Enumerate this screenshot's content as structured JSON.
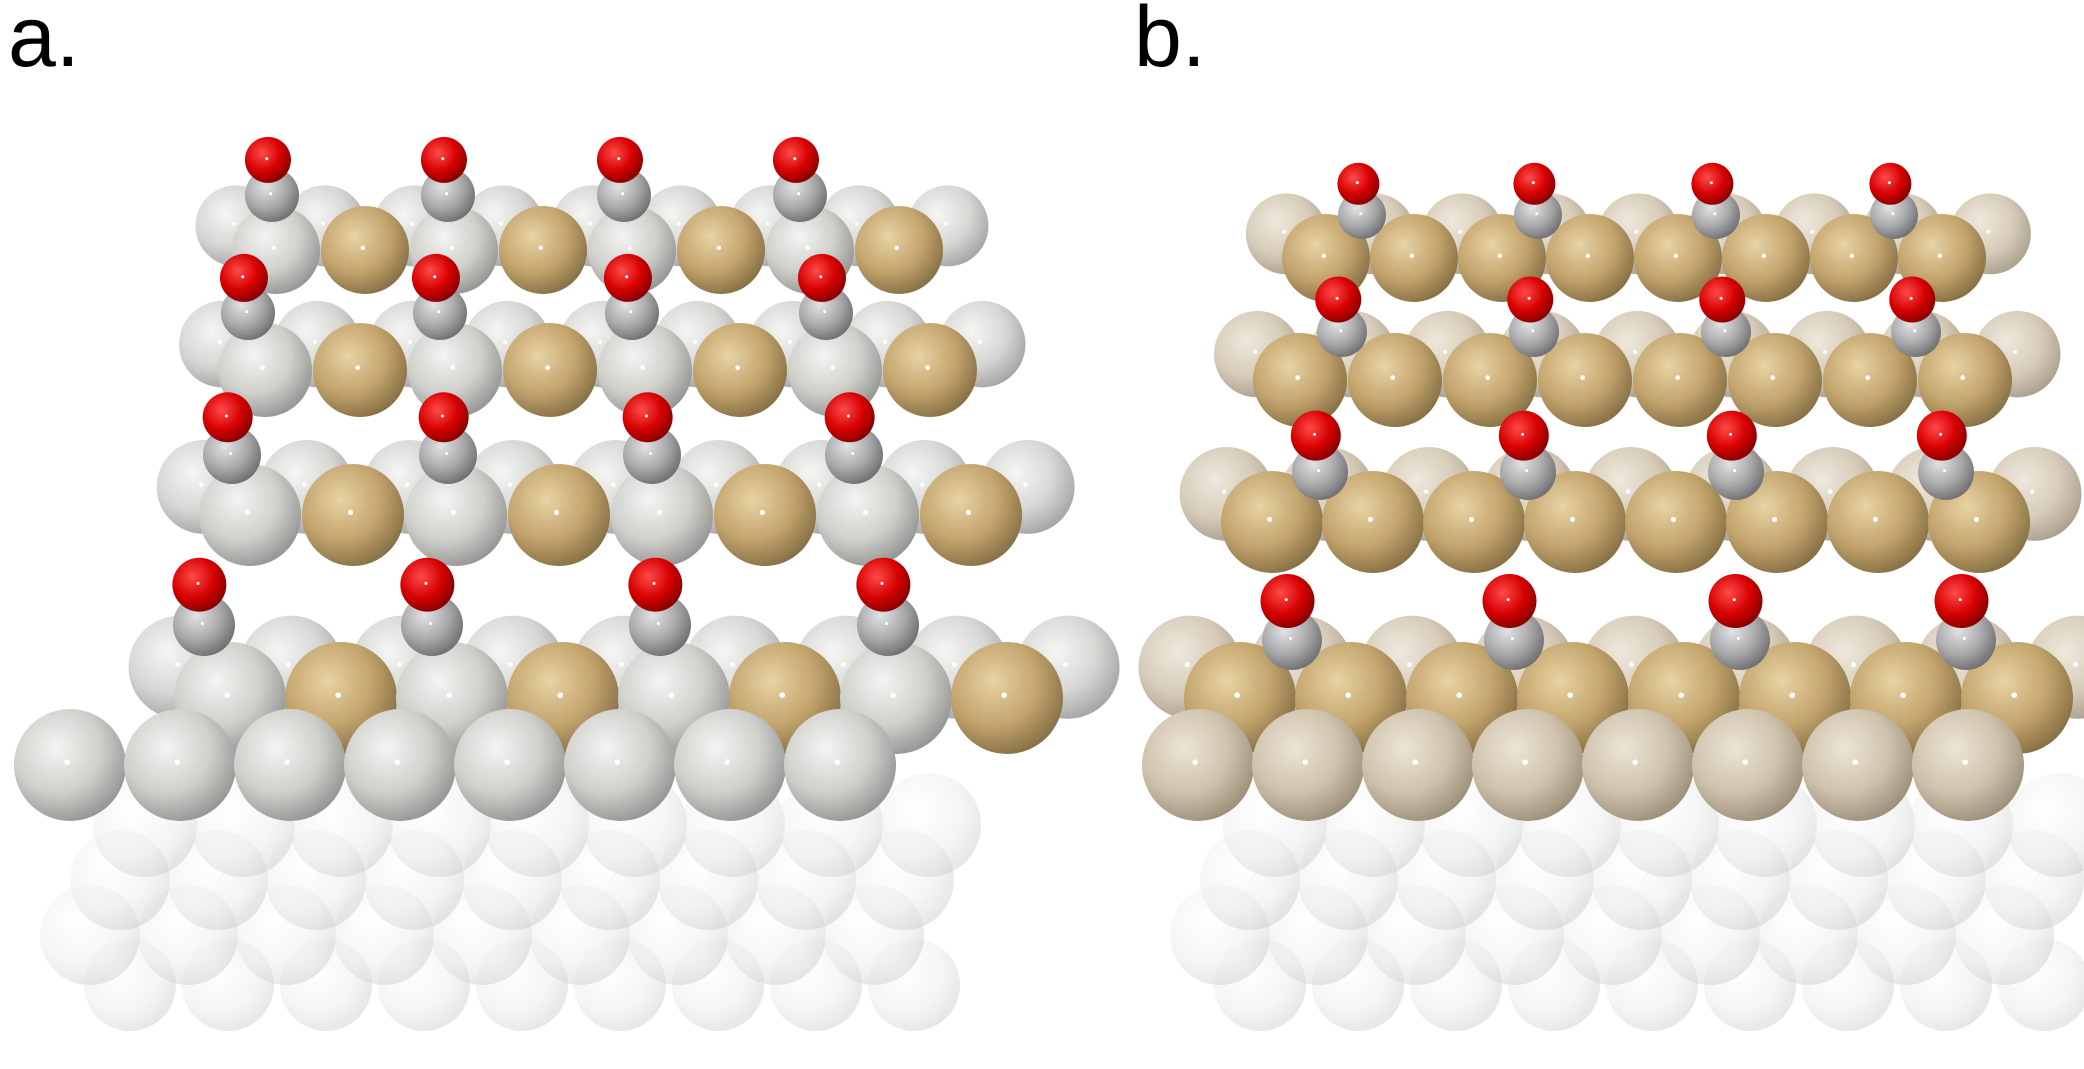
{
  "panels": {
    "a": {
      "label": "a."
    },
    "b": {
      "label": "b."
    }
  },
  "colors": {
    "host_atom": "#c9c9c6",
    "dopant_atom": "#c4a670",
    "bulk_atom": "#e6e6e6",
    "carbon": "#a8a8aa",
    "oxygen": "#d60000",
    "background": "#ffffff"
  },
  "legend": []
}
